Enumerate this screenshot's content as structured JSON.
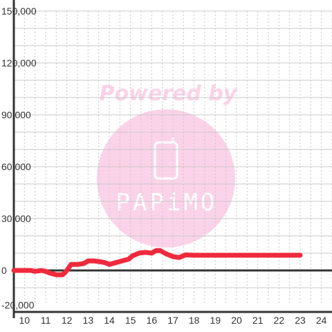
{
  "chart_data": {
    "type": "line",
    "title": "",
    "xlabel": "",
    "ylabel": "",
    "xlim": [
      9.5,
      24.5
    ],
    "ylim": [
      -20000,
      150000
    ],
    "x_ticks": [
      10,
      11,
      12,
      13,
      14,
      15,
      16,
      17,
      18,
      19,
      20,
      21,
      22,
      23,
      24
    ],
    "y_ticks": [
      -20000,
      0,
      30000,
      60000,
      90000,
      120000,
      150000
    ],
    "y_tick_labels": [
      "-20,000",
      "0",
      "30,000",
      "60,000",
      "90,000",
      "120,000",
      "150,000"
    ],
    "grid": true,
    "series": [
      {
        "color": "#ee2a3c",
        "x": [
          9.5,
          10.3,
          10.5,
          10.8,
          11.0,
          11.2,
          11.5,
          11.8,
          12.0,
          12.2,
          12.5,
          12.8,
          13.0,
          13.3,
          13.6,
          13.8,
          14.0,
          14.3,
          14.6,
          14.9,
          15.1,
          15.4,
          15.7,
          16.0,
          16.2,
          16.4,
          16.7,
          17.0,
          17.3,
          17.6,
          18.0,
          19.0,
          20.0,
          21.0,
          22.0,
          23.0
        ],
        "y": [
          0,
          0,
          -500,
          0,
          -500,
          -1500,
          -2500,
          -2500,
          0,
          3500,
          3500,
          4000,
          5500,
          5500,
          5000,
          4500,
          3500,
          4500,
          5500,
          6500,
          8500,
          10000,
          10500,
          10000,
          11500,
          11500,
          9500,
          8000,
          7500,
          9000,
          8800,
          8800,
          8800,
          8800,
          8800,
          8800
        ]
      }
    ]
  },
  "watermark": {
    "text": "Powered by",
    "brand": "PAPiMO",
    "color": "#fbd3e8"
  }
}
